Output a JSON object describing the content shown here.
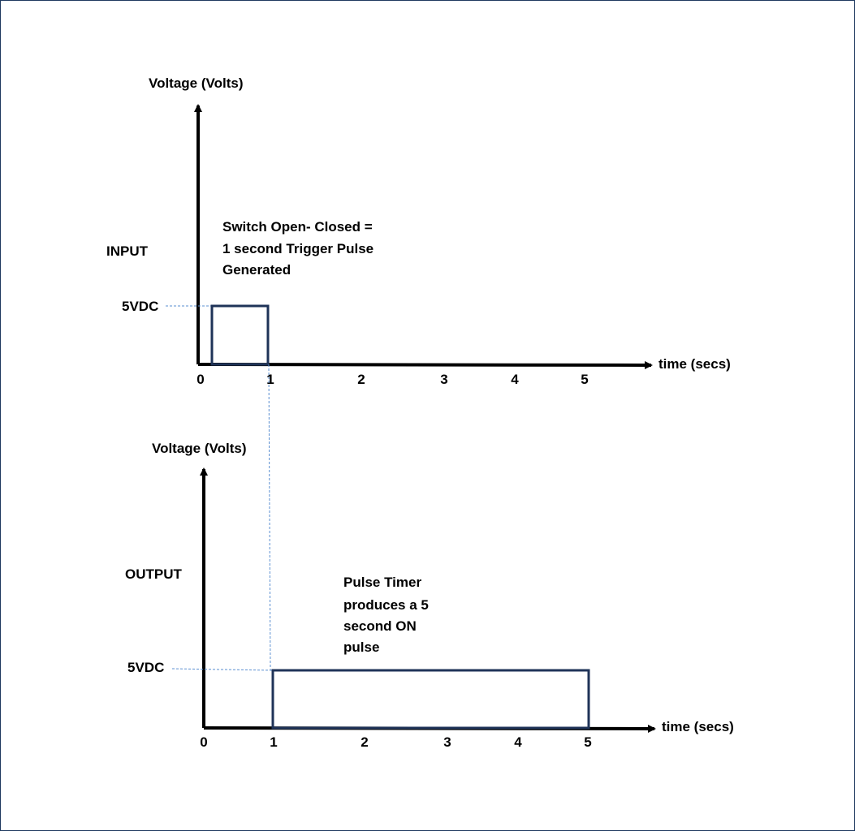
{
  "diagrams": {
    "input": {
      "side_label": "INPUT",
      "y_axis_label": "Voltage (Volts)",
      "x_axis_label": "time (secs)",
      "level_label": "5VDC",
      "ticks": [
        "0",
        "1",
        "2",
        "3",
        "4",
        "5"
      ],
      "note_lines": [
        "Switch Open- Closed =",
        "1 second Trigger Pulse",
        "Generated"
      ]
    },
    "output": {
      "side_label": "OUTPUT",
      "y_axis_label": "Voltage (Volts)",
      "x_axis_label": "time (secs)",
      "level_label": "5VDC",
      "ticks": [
        "0",
        "1",
        "2",
        "3",
        "4",
        "5"
      ],
      "note_lines": [
        "Pulse Timer",
        "produces a 5",
        "second ON",
        "pulse"
      ]
    }
  },
  "colors": {
    "axis": "#000000",
    "pulse": "#1f3358",
    "guide": "#5b8fd1",
    "frame": "#1f3a5f"
  }
}
